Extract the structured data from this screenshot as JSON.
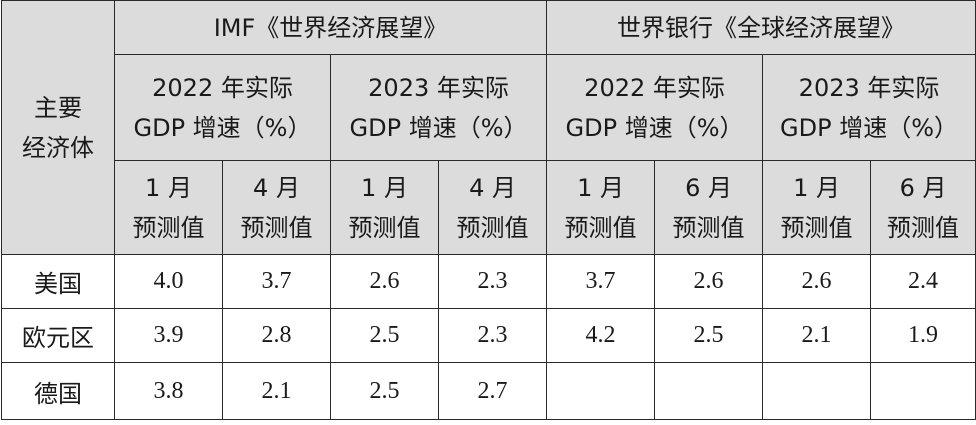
{
  "table": {
    "corner_header": [
      "主要",
      "经济体"
    ],
    "sources": [
      "IMF《世界经济展望》",
      "世界银行《全球经济展望》"
    ],
    "year_groups": [
      [
        "2022 年实际",
        "GDP 增速（%）"
      ],
      [
        "2023 年实际",
        "GDP 增速（%）"
      ],
      [
        "2022 年实际",
        "GDP 增速（%）"
      ],
      [
        "2023 年实际",
        "GDP 增速（%）"
      ]
    ],
    "forecasts": [
      [
        "1 月",
        "预测值"
      ],
      [
        "4 月",
        "预测值"
      ],
      [
        "1 月",
        "预测值"
      ],
      [
        "4 月",
        "预测值"
      ],
      [
        "1 月",
        "预测值"
      ],
      [
        "6 月",
        "预测值"
      ],
      [
        "1 月",
        "预测值"
      ],
      [
        "6 月",
        "预测值"
      ]
    ],
    "rows": [
      {
        "economy": "美国",
        "values": [
          "4.0",
          "3.7",
          "2.6",
          "2.3",
          "3.7",
          "2.6",
          "2.6",
          "2.4"
        ]
      },
      {
        "economy": "欧元区",
        "values": [
          "3.9",
          "2.8",
          "2.5",
          "2.3",
          "4.2",
          "2.5",
          "2.1",
          "1.9"
        ]
      },
      {
        "economy": "德国",
        "values": [
          "3.8",
          "2.1",
          "2.5",
          "2.7",
          "",
          "",
          "",
          ""
        ]
      }
    ]
  }
}
